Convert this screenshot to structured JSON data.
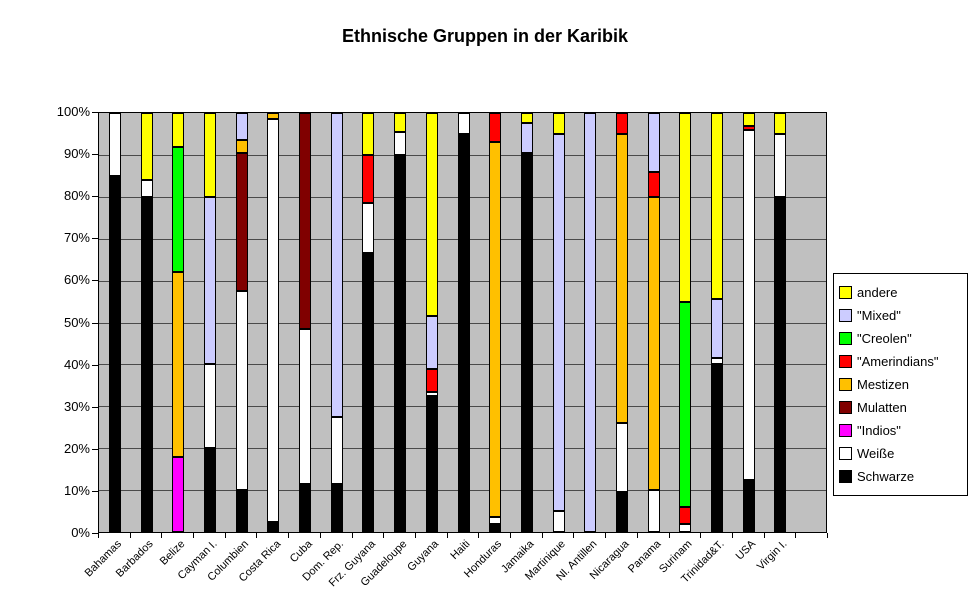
{
  "title": "Ethnische Gruppen in der Karibik",
  "chart_data": {
    "type": "bar",
    "stacked": true,
    "units": "percent",
    "title": "Ethnische Gruppen in der Karibik",
    "xlabel": "",
    "ylabel": "",
    "ylim": [
      0,
      100
    ],
    "yticks": [
      "100%",
      "90%",
      "80%",
      "70%",
      "60%",
      "50%",
      "40%",
      "30%",
      "20%",
      "10%",
      "0%"
    ],
    "grid": true,
    "plot_background": "#C0C0C0",
    "legend_position": "right",
    "legend_order_top_to_bottom": [
      "andere",
      "\"Mixed\"",
      "\"Creolen\"",
      "\"Amerindians\"",
      "Mestizen",
      "Mulatten",
      "\"Indios\"",
      "Weiße",
      "Schwarze"
    ],
    "categories": [
      "Bahamas",
      "Barbados",
      "Belize",
      "Cayman I.",
      "Columbien",
      "Costa Rica",
      "Cuba",
      "Dom. Rep.",
      "Frz. Guyana",
      "Guadeloupe",
      "Guyana",
      "Haiti",
      "Honduras",
      "Jamaika",
      "Martinique",
      "Nl. Antillen",
      "Nicaragua",
      "Panama",
      "Surinam",
      "Trinidad&T.",
      "USA",
      "Virgin I."
    ],
    "series": [
      {
        "key": "schwarze",
        "name": "Schwarze",
        "color": "#000000",
        "values": [
          85,
          80,
          0,
          20,
          10,
          2.5,
          11.5,
          11.5,
          66.5,
          90,
          32.5,
          95,
          2,
          90.5,
          0,
          0,
          9.5,
          0,
          0,
          40,
          12.5,
          80
        ]
      },
      {
        "key": "weisse",
        "name": "Weiße",
        "color": "#FFFFFF",
        "values": [
          15,
          4,
          0,
          20,
          47.5,
          96,
          37,
          16,
          12,
          5.5,
          1,
          5,
          1.5,
          0,
          5,
          0,
          16.5,
          10,
          2,
          1.5,
          83.5,
          15
        ]
      },
      {
        "key": "indios",
        "name": "\"Indios\"",
        "color": "#FF00FF",
        "values": [
          0,
          0,
          18,
          0,
          0,
          0,
          0,
          0,
          0,
          0,
          0,
          0,
          0,
          0,
          0,
          0,
          0,
          0,
          0,
          0,
          0,
          0
        ]
      },
      {
        "key": "mulatten",
        "name": "Mulatten",
        "color": "#800000",
        "values": [
          0,
          0,
          0,
          0,
          33,
          0,
          51.5,
          0,
          0,
          0,
          0,
          0,
          0,
          0,
          0,
          0,
          0,
          0,
          0,
          0,
          0,
          0
        ]
      },
      {
        "key": "mestizen",
        "name": "Mestizen",
        "color": "#FFC000",
        "values": [
          0,
          0,
          44,
          0,
          3,
          1.5,
          0,
          0,
          0,
          0,
          0,
          0,
          89.5,
          0,
          0,
          0,
          69,
          70,
          0,
          0,
          0,
          0
        ]
      },
      {
        "key": "amerindians",
        "name": "\"Amerindians\"",
        "color": "#FF0000",
        "values": [
          0,
          0,
          0,
          0,
          0,
          0,
          0,
          0,
          11.5,
          0,
          5.5,
          0,
          7,
          0,
          0,
          0,
          5,
          6,
          4,
          0,
          1,
          0
        ]
      },
      {
        "key": "creolen",
        "name": "\"Creolen\"",
        "color": "#00FF00",
        "values": [
          0,
          0,
          30,
          0,
          0,
          0,
          0,
          0,
          0,
          0,
          0,
          0,
          0,
          0,
          0,
          0,
          0,
          0,
          49,
          0,
          0,
          0
        ]
      },
      {
        "key": "mixed",
        "name": "\"Mixed\"",
        "color": "#CCCCFF",
        "values": [
          0,
          0,
          0,
          40,
          6.5,
          0,
          0,
          72.5,
          0,
          0,
          12.5,
          0,
          0,
          7,
          90,
          100,
          0,
          14,
          0,
          14,
          0,
          0
        ]
      },
      {
        "key": "andere",
        "name": "andere",
        "color": "#FFFF00",
        "values": [
          0,
          16,
          8,
          20,
          0,
          0,
          0,
          0,
          10,
          4.5,
          48.5,
          0,
          0,
          2.5,
          5,
          0,
          0,
          0,
          45,
          44.5,
          3,
          5
        ]
      }
    ]
  }
}
